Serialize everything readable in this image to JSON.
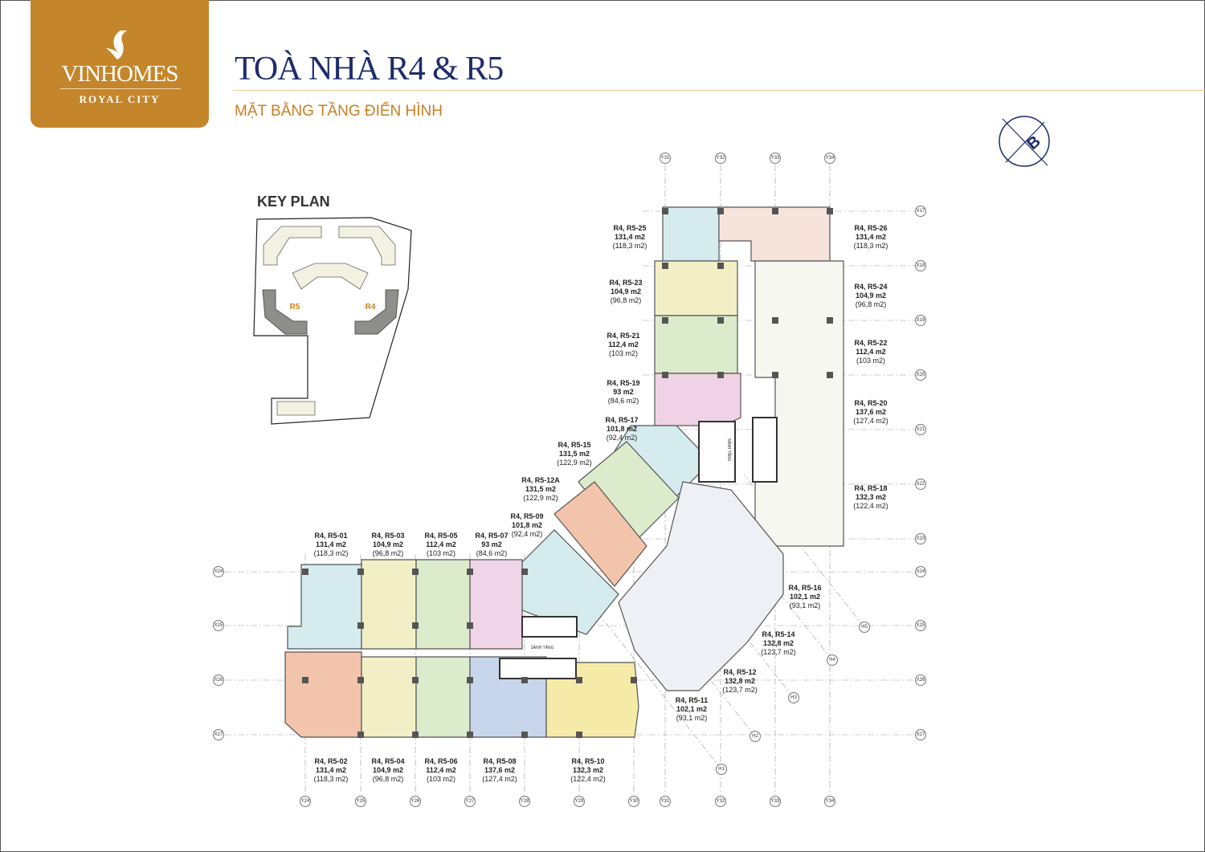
{
  "logo": {
    "brand": "VINHOMES",
    "sub": "ROYAL CITY"
  },
  "header": {
    "title": "TOÀ NHÀ R4 & R5",
    "subtitle": "MẶT BẰNG TẦNG ĐIỂN HÌNH"
  },
  "key_plan": {
    "title": "KEY PLAN",
    "labels": [
      "R5",
      "R4"
    ],
    "highlight_color": "#8e8e8a"
  },
  "north_icon": "compass-north-icon",
  "compass_letter": "B",
  "colors": {
    "brand_gold": "#c5862b",
    "title_navy": "#1d2c6b",
    "subtitle_orange": "#c97f22"
  },
  "units": [
    {
      "id": "R4, R5-25",
      "area": "131,4 m2",
      "net": "(118,3 m2)"
    },
    {
      "id": "R4, R5-26",
      "area": "131,4 m2",
      "net": "(118,3 m2)"
    },
    {
      "id": "R4, R5-23",
      "area": "104,9 m2",
      "net": "(96,8 m2)"
    },
    {
      "id": "R4, R5-24",
      "area": "104,9 m2",
      "net": "(96,8 m2)"
    },
    {
      "id": "R4, R5-21",
      "area": "112,4 m2",
      "net": "(103 m2)"
    },
    {
      "id": "R4, R5-22",
      "area": "112,4 m2",
      "net": "(103 m2)"
    },
    {
      "id": "R4, R5-19",
      "area": "93 m2",
      "net": "(84,6 m2)"
    },
    {
      "id": "R4, R5-20",
      "area": "137,6 m2",
      "net": "(127,4 m2)"
    },
    {
      "id": "R4, R5-17",
      "area": "101,8 m2",
      "net": "(92,4 m2)"
    },
    {
      "id": "R4, R5-18",
      "area": "132,3 m2",
      "net": "(122,4 m2)"
    },
    {
      "id": "R4, R5-15",
      "area": "131,5 m2",
      "net": "(122,9 m2)"
    },
    {
      "id": "R4, R5-12A",
      "area": "131,5 m2",
      "net": "(122,9 m2)"
    },
    {
      "id": "R4, R5-09",
      "area": "101,8 m2",
      "net": "(92,4 m2)"
    },
    {
      "id": "R4, R5-01",
      "area": "131,4 m2",
      "net": "(118,3 m2)"
    },
    {
      "id": "R4, R5-03",
      "area": "104,9 m2",
      "net": "(96,8 m2)"
    },
    {
      "id": "R4, R5-05",
      "area": "112,4 m2",
      "net": "(103 m2)"
    },
    {
      "id": "R4, R5-07",
      "area": "93 m2",
      "net": "(84,6 m2)"
    },
    {
      "id": "R4, R5-16",
      "area": "102,1 m2",
      "net": "(93,1 m2)"
    },
    {
      "id": "R4, R5-14",
      "area": "132,8 m2",
      "net": "(123,7 m2)"
    },
    {
      "id": "R4, R5-12",
      "area": "132,8 m2",
      "net": "(123,7 m2)"
    },
    {
      "id": "R4, R5-11",
      "area": "102,1 m2",
      "net": "(93,1 m2)"
    },
    {
      "id": "R4, R5-02",
      "area": "131,4 m2",
      "net": "(118,3 m2)"
    },
    {
      "id": "R4, R5-04",
      "area": "104,9 m2",
      "net": "(96,8 m2)"
    },
    {
      "id": "R4, R5-06",
      "area": "112,4 m2",
      "net": "(103 m2)"
    },
    {
      "id": "R4, R5-08",
      "area": "137,6 m2",
      "net": "(127,4 m2)"
    },
    {
      "id": "R4, R5-10",
      "area": "132,3 m2",
      "net": "(122,4 m2)"
    }
  ],
  "grid_labels": {
    "top": [
      "Y31",
      "Y32",
      "Y33",
      "Y34"
    ],
    "right": [
      "X17",
      "X18",
      "X19",
      "X20",
      "X21",
      "X22",
      "X23",
      "X24",
      "X25",
      "X26",
      "X27"
    ],
    "left": [
      "X24",
      "X25",
      "X26",
      "X27"
    ],
    "bottom": [
      "Y24",
      "Y25",
      "Y26",
      "Y27",
      "Y28",
      "Y29",
      "Y30",
      "Y31",
      "Y32",
      "Y33",
      "Y34"
    ],
    "diagonal": [
      "H1",
      "H2",
      "H3",
      "H4",
      "H5"
    ]
  },
  "core_labels": [
    "SẢNH TẦNG",
    "SẢNH TẦNG"
  ]
}
